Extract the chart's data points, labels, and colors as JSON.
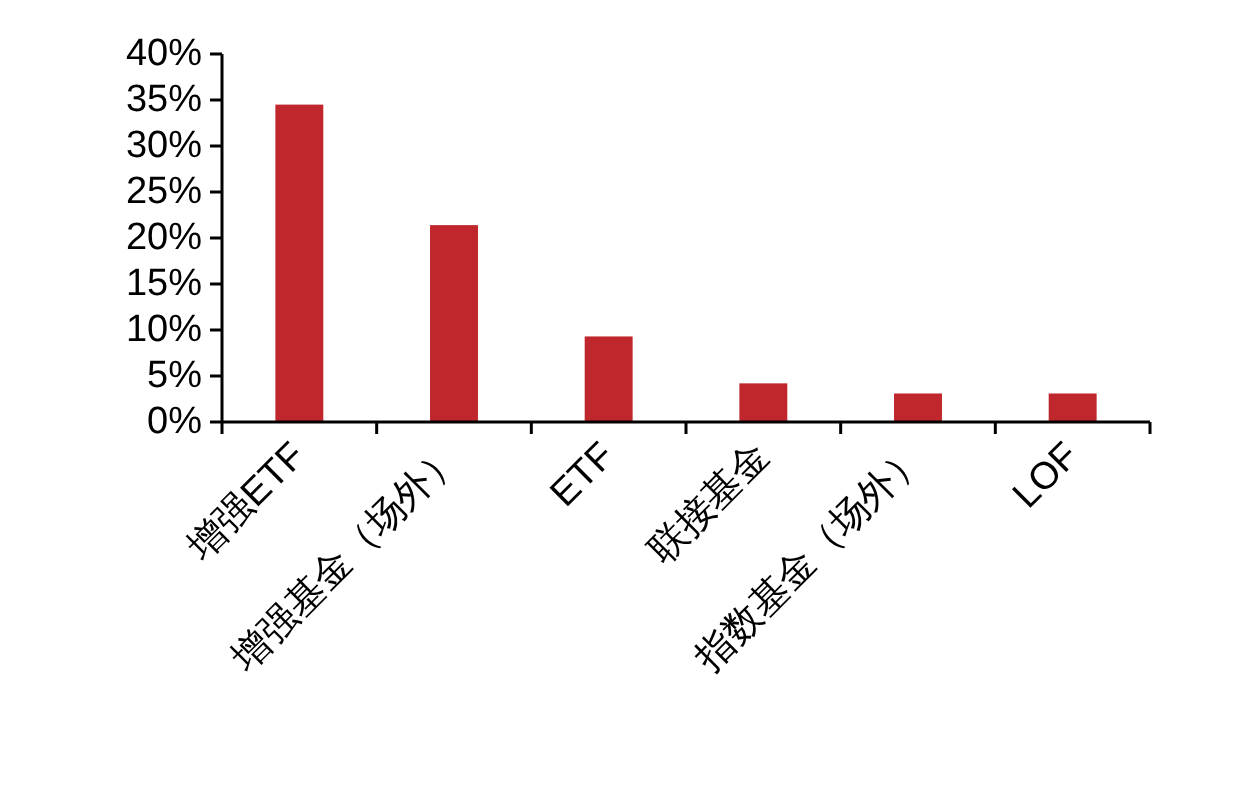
{
  "chart_data": {
    "type": "bar",
    "categories": [
      "增强ETF",
      "增强基金（场外）",
      "ETF",
      "联接基金",
      "指数基金（场外）",
      "LOF"
    ],
    "values": [
      34.5,
      21.4,
      9.3,
      4.2,
      3.1,
      3.1
    ],
    "color": "#c0272d",
    "ylim": [
      0,
      40
    ],
    "yticks": [
      {
        "value": 0,
        "label": "0%"
      },
      {
        "value": 5,
        "label": "5%"
      },
      {
        "value": 10,
        "label": "10%"
      },
      {
        "value": 15,
        "label": "15%"
      },
      {
        "value": 20,
        "label": "20%"
      },
      {
        "value": 25,
        "label": "25%"
      },
      {
        "value": 30,
        "label": "30%"
      },
      {
        "value": 35,
        "label": "35%"
      },
      {
        "value": 40,
        "label": "40%"
      }
    ],
    "grid": false
  }
}
